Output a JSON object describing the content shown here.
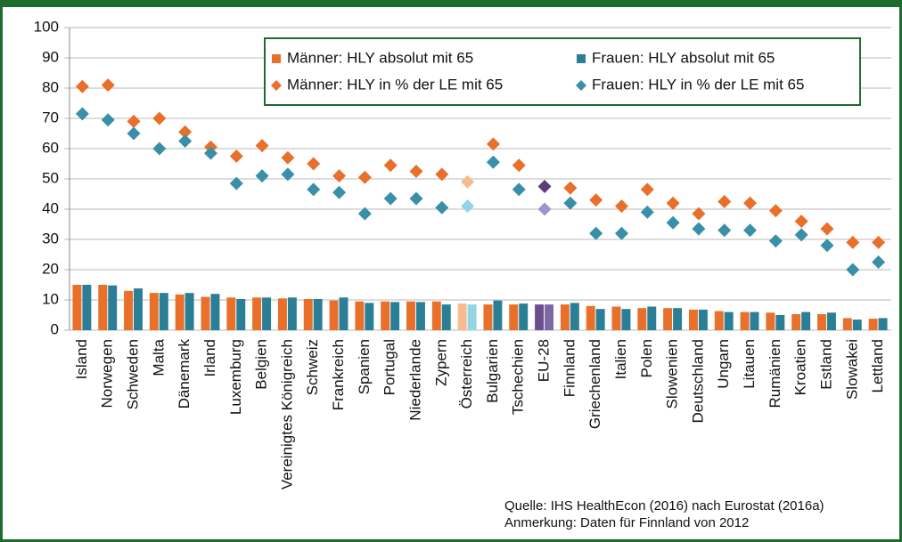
{
  "chart_data": {
    "type": "bar",
    "categories": [
      "Island",
      "Norwegen",
      "Schweden",
      "Malta",
      "Dänemark",
      "Irland",
      "Luxemburg",
      "Belgien",
      "Vereinigtes Königreich",
      "Schweiz",
      "Frankreich",
      "Spanien",
      "Portugal",
      "Niederlande",
      "Zypern",
      "Österreich",
      "Bulgarien",
      "Tschechien",
      "EU-28",
      "Finnland",
      "Griechenland",
      "Italien",
      "Polen",
      "Slowenien",
      "Deutschland",
      "Ungarn",
      "Litauen",
      "Rumänien",
      "Kroatien",
      "Estland",
      "Slowakei",
      "Lettland"
    ],
    "series": [
      {
        "name": "Männer: HLY absolut mit 65",
        "style": "bar",
        "color": "#e8702a",
        "values": [
          15,
          15,
          13,
          12.3,
          11.8,
          11,
          10.8,
          10.8,
          10.5,
          10.3,
          9.8,
          9.5,
          9.5,
          9.5,
          9.5,
          8.8,
          8.5,
          8.5,
          8.5,
          8.5,
          8,
          7.8,
          7.3,
          7.3,
          6.8,
          6.3,
          6,
          5.8,
          5.3,
          5.3,
          4,
          3.8
        ],
        "colors": [
          "#e8702a",
          "#e8702a",
          "#e8702a",
          "#e8702a",
          "#e8702a",
          "#e8702a",
          "#e8702a",
          "#e8702a",
          "#e8702a",
          "#e8702a",
          "#e8702a",
          "#e8702a",
          "#e8702a",
          "#e8702a",
          "#e8702a",
          "#f6bb90",
          "#e8702a",
          "#e8702a",
          "#6a4f8f",
          "#e8702a",
          "#e8702a",
          "#e8702a",
          "#e8702a",
          "#e8702a",
          "#e8702a",
          "#e8702a",
          "#e8702a",
          "#e8702a",
          "#e8702a",
          "#e8702a",
          "#e8702a",
          "#e8702a"
        ]
      },
      {
        "name": "Frauen: HLY absolut mit 65",
        "style": "bar",
        "color": "#2a7f96",
        "values": [
          15,
          14.8,
          13.8,
          12.3,
          12.3,
          12,
          10.3,
          10.8,
          10.8,
          10.3,
          10.8,
          9,
          9.3,
          9.3,
          8.5,
          8.5,
          9.8,
          8.8,
          8.5,
          9,
          7,
          7,
          7.8,
          7.3,
          6.8,
          6,
          6,
          5,
          6,
          5.8,
          3.5,
          4
        ],
        "colors": [
          "#2a7f96",
          "#2a7f96",
          "#2a7f96",
          "#2a7f96",
          "#2a7f96",
          "#2a7f96",
          "#2a7f96",
          "#2a7f96",
          "#2a7f96",
          "#2a7f96",
          "#2a7f96",
          "#2a7f96",
          "#2a7f96",
          "#2a7f96",
          "#2a7f96",
          "#93d4e6",
          "#2a7f96",
          "#2a7f96",
          "#7d68a3",
          "#2a7f96",
          "#2a7f96",
          "#2a7f96",
          "#2a7f96",
          "#2a7f96",
          "#2a7f96",
          "#2a7f96",
          "#2a7f96",
          "#2a7f96",
          "#2a7f96",
          "#2a7f96",
          "#2a7f96",
          "#2a7f96"
        ]
      },
      {
        "name": "Männer: HLY in % der LE mit 65",
        "style": "scatter",
        "color": "#e8702a",
        "values": [
          80.5,
          81,
          69,
          70,
          65.5,
          60.5,
          57.5,
          61,
          57,
          55,
          51,
          50.5,
          54.5,
          52.5,
          51.5,
          49,
          61.5,
          54.5,
          47.5,
          47,
          43,
          41,
          46.5,
          42,
          38.5,
          42.5,
          42,
          39.5,
          36,
          33.5,
          29,
          29
        ],
        "colors": [
          "#e8702a",
          "#e8702a",
          "#e8702a",
          "#e8702a",
          "#e8702a",
          "#e8702a",
          "#e8702a",
          "#e8702a",
          "#e8702a",
          "#e8702a",
          "#e8702a",
          "#e8702a",
          "#e8702a",
          "#e8702a",
          "#e8702a",
          "#f6bb90",
          "#e8702a",
          "#e8702a",
          "#5a3d7a",
          "#e8702a",
          "#e8702a",
          "#e8702a",
          "#e8702a",
          "#e8702a",
          "#e8702a",
          "#e8702a",
          "#e8702a",
          "#e8702a",
          "#e8702a",
          "#e8702a",
          "#e8702a",
          "#e8702a"
        ]
      },
      {
        "name": "Frauen: HLY in % der LE mit 65",
        "style": "scatter",
        "color": "#3a8fa8",
        "values": [
          71.5,
          69.5,
          65,
          60,
          62.5,
          58.5,
          48.5,
          51,
          51.5,
          46.5,
          45.5,
          38.5,
          43.5,
          43.5,
          40.5,
          41,
          55.5,
          46.5,
          40,
          42,
          32,
          32,
          39,
          35.5,
          33.5,
          33,
          33,
          29.5,
          31.5,
          28,
          20,
          22.5
        ],
        "colors": [
          "#3a8fa8",
          "#3a8fa8",
          "#3a8fa8",
          "#3a8fa8",
          "#3a8fa8",
          "#3a8fa8",
          "#3a8fa8",
          "#3a8fa8",
          "#3a8fa8",
          "#3a8fa8",
          "#3a8fa8",
          "#3a8fa8",
          "#3a8fa8",
          "#3a8fa8",
          "#3a8fa8",
          "#93d4e6",
          "#3a8fa8",
          "#3a8fa8",
          "#a393c8",
          "#3a8fa8",
          "#3a8fa8",
          "#3a8fa8",
          "#3a8fa8",
          "#3a8fa8",
          "#3a8fa8",
          "#3a8fa8",
          "#3a8fa8",
          "#3a8fa8",
          "#3a8fa8",
          "#3a8fa8",
          "#3a8fa8",
          "#3a8fa8"
        ]
      }
    ],
    "ylim": [
      0,
      100
    ],
    "yticks": [
      0,
      10,
      20,
      30,
      40,
      50,
      60,
      70,
      80,
      90,
      100
    ],
    "grid": true,
    "notes": [
      "Quelle: IHS HealthEcon (2016) nach Eurostat (2016a)",
      "Anmerkung: Daten für Finnland von 2012"
    ]
  }
}
